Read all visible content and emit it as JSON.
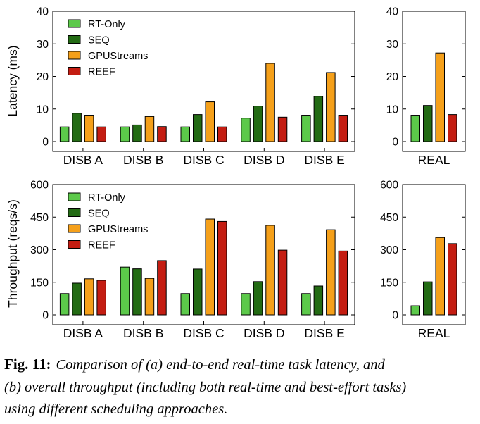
{
  "colors": {
    "rt_only": "#5cc94a",
    "seq": "#236b14",
    "gpustreams": "#f5a01a",
    "reef": "#c41d12"
  },
  "chart_data": [
    {
      "type": "bar",
      "panel": "latency-disb",
      "ylabel": "Latency (ms)",
      "ylim": [
        0,
        40
      ],
      "yticks": [
        "0",
        "10",
        "20",
        "30",
        "40"
      ],
      "categories": [
        "DISB A",
        "DISB B",
        "DISB C",
        "DISB D",
        "DISB E"
      ],
      "legend_placement": "top-left",
      "series": [
        {
          "name": "RT-Only",
          "values": [
            4.5,
            4.5,
            4.5,
            7.2,
            8.1
          ]
        },
        {
          "name": "SEQ",
          "values": [
            8.7,
            5.1,
            8.3,
            10.9,
            13.9
          ]
        },
        {
          "name": "GPUStreams",
          "values": [
            8.1,
            7.7,
            12.2,
            24.0,
            21.2
          ]
        },
        {
          "name": "REEF",
          "values": [
            4.5,
            4.6,
            4.5,
            7.5,
            8.1
          ]
        }
      ]
    },
    {
      "type": "bar",
      "panel": "latency-real",
      "ylim": [
        0,
        40
      ],
      "yticks": [
        "0",
        "10",
        "20",
        "30",
        "40"
      ],
      "categories": [
        "REAL"
      ],
      "series": [
        {
          "name": "RT-Only",
          "values": [
            8.1
          ]
        },
        {
          "name": "SEQ",
          "values": [
            11.1
          ]
        },
        {
          "name": "GPUStreams",
          "values": [
            27.2
          ]
        },
        {
          "name": "REEF",
          "values": [
            8.3
          ]
        }
      ]
    },
    {
      "type": "bar",
      "panel": "throughput-disb",
      "ylabel": "Throughput (reqs/s)",
      "ylim": [
        0,
        600
      ],
      "yticks": [
        "0",
        "150",
        "300",
        "450",
        "600"
      ],
      "categories": [
        "DISB A",
        "DISB B",
        "DISB C",
        "DISB D",
        "DISB E"
      ],
      "legend_placement": "top-left",
      "series": [
        {
          "name": "RT-Only",
          "values": [
            98,
            220,
            98,
            98,
            98
          ]
        },
        {
          "name": "SEQ",
          "values": [
            146,
            212,
            211,
            153,
            133
          ]
        },
        {
          "name": "GPUStreams",
          "values": [
            166,
            168,
            441,
            412,
            392
          ]
        },
        {
          "name": "REEF",
          "values": [
            159,
            250,
            430,
            298,
            294
          ]
        }
      ]
    },
    {
      "type": "bar",
      "panel": "throughput-real",
      "ylim": [
        0,
        600
      ],
      "yticks": [
        "0",
        "150",
        "300",
        "450",
        "600"
      ],
      "categories": [
        "REAL"
      ],
      "series": [
        {
          "name": "RT-Only",
          "values": [
            42
          ]
        },
        {
          "name": "SEQ",
          "values": [
            152
          ]
        },
        {
          "name": "GPUStreams",
          "values": [
            356
          ]
        },
        {
          "name": "REEF",
          "values": [
            328
          ]
        }
      ]
    }
  ],
  "caption": {
    "label": "Fig. 11:",
    "line1": "Comparison of (a) end-to-end real-time task latency, and",
    "line2": "(b) overall throughput (including both real-time and best-effort tasks)",
    "line3": "using different scheduling approaches."
  }
}
